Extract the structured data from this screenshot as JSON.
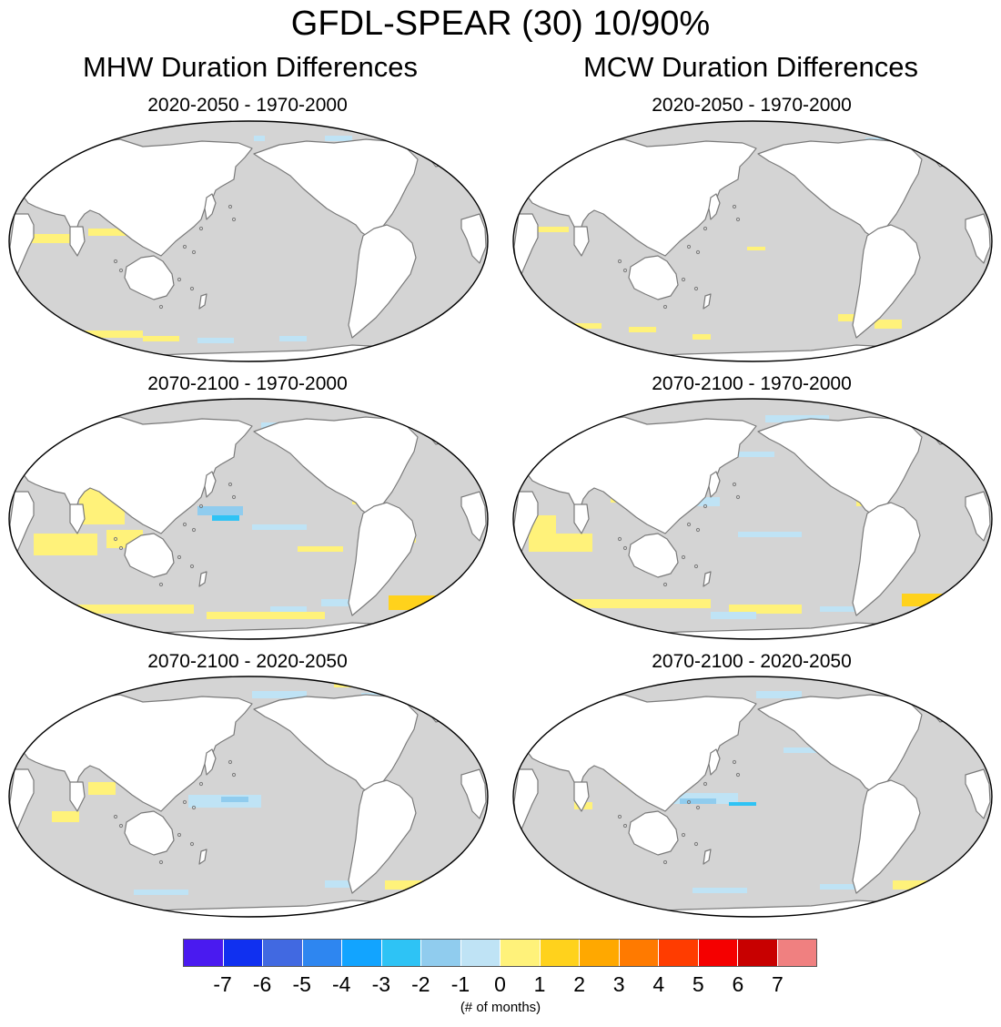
{
  "figure": {
    "title": "GFDL-SPEAR (30) 10/90%",
    "columns": [
      {
        "title": "MHW Duration Differences",
        "panels": [
          {
            "subtitle": "2020-2050 - 1970-2000"
          },
          {
            "subtitle": "2070-2100 - 1970-2000"
          },
          {
            "subtitle": "2070-2100 - 2020-2050"
          }
        ]
      },
      {
        "title": "MCW Duration Differences",
        "panels": [
          {
            "subtitle": "2020-2050 - 1970-2000"
          },
          {
            "subtitle": "2070-2100 - 1970-2000"
          },
          {
            "subtitle": "2070-2100 - 2020-2050"
          }
        ]
      }
    ]
  },
  "map_style": {
    "ocean_color": "#d4d4d4",
    "land_color": "#ffffff",
    "coast_color": "#7a7a7a",
    "projection": "Robinson, Pacific-centered",
    "bins": [
      "#4a1af0",
      "#1030f0",
      "#4169e1",
      "#2e86f0",
      "#12a4ff",
      "#2ec3f5",
      "#90ccee",
      "#bfe3f5",
      "#fff27a",
      "#ffd21c",
      "#ffa800",
      "#ff7a00",
      "#ff3c00",
      "#f50000",
      "#c80000",
      "#f08080"
    ]
  },
  "colorbar": {
    "colors": [
      "#4a1af0",
      "#1030f0",
      "#4169e1",
      "#2e86f0",
      "#12a4ff",
      "#2ec3f5",
      "#90ccee",
      "#bfe3f5",
      "#fff27a",
      "#ffd21c",
      "#ffa800",
      "#ff7a00",
      "#ff3c00",
      "#f50000",
      "#c80000",
      "#f08080"
    ],
    "ticks": [
      "-7",
      "-6",
      "-5",
      "-4",
      "-3",
      "-2",
      "-1",
      "0",
      "1",
      "2",
      "3",
      "4",
      "5",
      "6",
      "7"
    ],
    "units": "(# of months)"
  }
}
